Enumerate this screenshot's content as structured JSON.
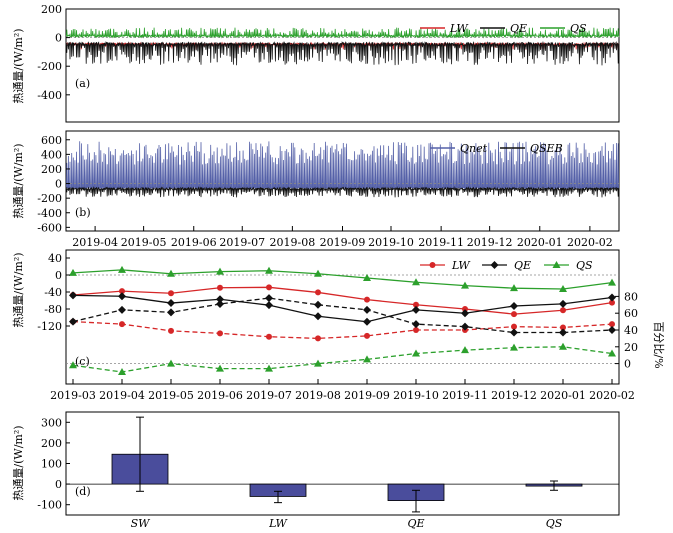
{
  "chart_data": [
    {
      "type": "line",
      "panel_label": "(a)",
      "ylabel": "热通量/(W/m²)",
      "ylim": [
        -590,
        200
      ],
      "yticks": [
        -400,
        -200,
        0,
        200
      ],
      "xlim": [
        "2019-03-28",
        "2020-03-04"
      ],
      "legend": {
        "placement": "top-right"
      },
      "series": [
        {
          "name": "LW",
          "color": "#d62728",
          "base": -45,
          "amp": 40,
          "noise": 15
        },
        {
          "name": "QE",
          "color": "#111111",
          "base": -45,
          "amp": 150,
          "noise": 25
        },
        {
          "name": "QS",
          "color": "#2ca02c",
          "base": 10,
          "amp": 60,
          "noise": 15
        }
      ]
    },
    {
      "type": "line",
      "panel_label": "(b)",
      "ylabel": "热通量/(W/m²)",
      "ylim": [
        -650,
        720
      ],
      "yticks": [
        -600,
        -400,
        -200,
        0,
        200,
        400,
        600
      ],
      "xlim": [
        "2019-03-28",
        "2020-03-04"
      ],
      "xticks": [
        "2019-04",
        "2019-05",
        "2019-06",
        "2019-07",
        "2019-08",
        "2019-09",
        "2019-10",
        "2019-11",
        "2019-12",
        "2020-01",
        "2020-02"
      ],
      "legend": {
        "placement": "top-right"
      },
      "series": [
        {
          "name": "Qnet",
          "color": "#5561a8",
          "base": -60,
          "amp": 640,
          "noise": 20
        },
        {
          "name": "QSEB",
          "color": "#111111",
          "base": -70,
          "amp": 120,
          "noise": 30
        }
      ]
    },
    {
      "type": "line",
      "panel_label": "(c)",
      "ylabel": "热通量/(W/m²)",
      "ylabel_right": "百分比/%",
      "ylim": [
        -120,
        40
      ],
      "yticks": [
        -120,
        -80,
        -40,
        0,
        40
      ],
      "yticks_right": [
        0,
        20,
        40,
        60,
        80
      ],
      "categories": [
        "2019-03",
        "2019-04",
        "2019-05",
        "2019-06",
        "2019-07",
        "2019-08",
        "2019-09",
        "2019-10",
        "2019-11",
        "2019-12",
        "2020-01",
        "2020-02"
      ],
      "legend": {
        "placement": "top-right"
      },
      "series": [
        {
          "name": "LW",
          "color": "#d62728",
          "marker": "circle",
          "values": [
            -47,
            -38,
            -43,
            -30,
            -29,
            -41,
            -58,
            -70,
            -80,
            -92,
            -83,
            -65
          ]
        },
        {
          "name": "QE",
          "color": "#111111",
          "marker": "diamond",
          "values": [
            -48,
            -50,
            -66,
            -57,
            -71,
            -97,
            -110,
            -82,
            -90,
            -73,
            -68,
            -53
          ]
        },
        {
          "name": "QS",
          "color": "#2ca02c",
          "marker": "triangle",
          "values": [
            5,
            12,
            3,
            8,
            10,
            3,
            -7,
            -17,
            -25,
            -31,
            -33,
            -18
          ]
        }
      ],
      "percent_series": [
        {
          "name": "LW",
          "color": "#d62728",
          "marker": "circle",
          "values": [
            50,
            47,
            39,
            36,
            32,
            30,
            33,
            40,
            40,
            44,
            43,
            47
          ]
        },
        {
          "name": "QE",
          "color": "#111111",
          "marker": "diamond",
          "values": [
            50,
            64,
            61,
            71,
            78,
            70,
            64,
            47,
            44,
            37,
            37,
            40
          ]
        },
        {
          "name": "QS",
          "color": "#2ca02c",
          "marker": "triangle",
          "values": [
            -2,
            -10,
            0,
            -6,
            -6,
            0,
            5,
            12,
            16,
            19,
            20,
            12
          ]
        }
      ]
    },
    {
      "type": "bar",
      "panel_label": "(d)",
      "ylabel": "热通量/(W/m²)",
      "ylim": [
        -150,
        350
      ],
      "yticks": [
        -100,
        0,
        100,
        200,
        300
      ],
      "categories": [
        "SW",
        "LW",
        "QE",
        "QS"
      ],
      "values": [
        145,
        -60,
        -80,
        -8
      ],
      "errors": [
        [
          -35,
          325
        ],
        [
          -90,
          -35
        ],
        [
          -135,
          -30
        ],
        [
          -30,
          15
        ]
      ],
      "bar_color": "#4a4d9c"
    }
  ]
}
